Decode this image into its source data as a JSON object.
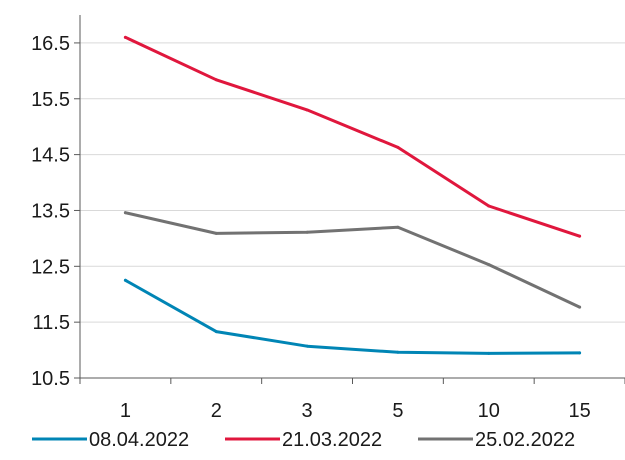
{
  "chart_data": {
    "type": "line",
    "title": "",
    "xlabel": "",
    "ylabel": "",
    "categories": [
      "1",
      "2",
      "3",
      "5",
      "10",
      "15"
    ],
    "ylim": [
      10.5,
      17.0
    ],
    "yticks": [
      10.5,
      11.5,
      12.5,
      13.5,
      14.5,
      15.5,
      16.5
    ],
    "y_tick_labels": [
      "10.5",
      "11.5",
      "12.5",
      "13.5",
      "14.5",
      "15.5",
      "16.5"
    ],
    "grid": true,
    "legend_position": "bottom",
    "series": [
      {
        "name": "08.04.2022",
        "color": "#0085b5",
        "values": [
          12.25,
          11.33,
          11.07,
          10.96,
          10.94,
          10.95
        ]
      },
      {
        "name": "21.03.2022",
        "color": "#e0173d",
        "values": [
          16.6,
          15.84,
          15.3,
          14.63,
          13.58,
          13.04
        ]
      },
      {
        "name": "25.02.2022",
        "color": "#727272",
        "values": [
          13.46,
          13.09,
          13.11,
          13.2,
          12.53,
          11.77
        ]
      }
    ]
  }
}
